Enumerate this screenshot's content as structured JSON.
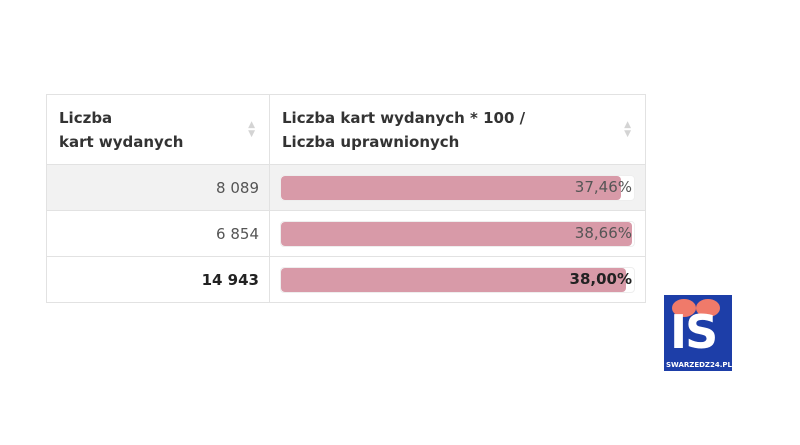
{
  "table": {
    "headers": [
      {
        "line1": "Liczba",
        "line2": "kart wydanych"
      },
      {
        "line1": "Liczba kart wydanych * 100 /",
        "line2": "Liczba uprawnionych"
      }
    ],
    "rows": [
      {
        "count": "8 089",
        "percent_label": "37,46%",
        "percent": 37.46
      },
      {
        "count": "6 854",
        "percent_label": "38,66%",
        "percent": 38.66
      },
      {
        "count": "14 943",
        "percent_label": "38,00%",
        "percent": 38.0,
        "total": true
      }
    ]
  },
  "colors": {
    "bar": "#d89aa8",
    "stripe": "#f2f2f2"
  },
  "logo": {
    "text": "IS",
    "site": "SWARZEDZ24.PL"
  }
}
